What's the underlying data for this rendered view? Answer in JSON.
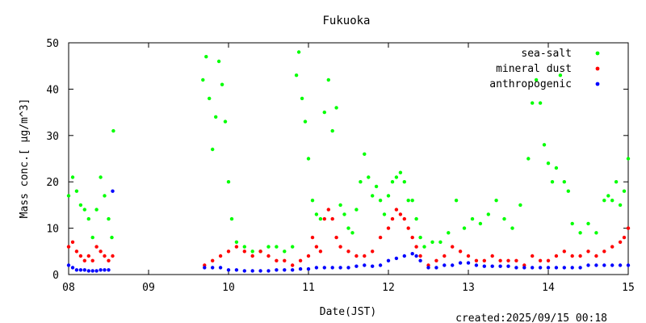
{
  "chart_data": {
    "type": "scatter",
    "title": "Fukuoka",
    "xlabel": "Date(JST)",
    "ylabel": "Mass conc.[ μg/m^3]",
    "x_ticks": [
      "08",
      "09",
      "10",
      "11",
      "12",
      "13",
      "14",
      "15"
    ],
    "y_ticks": [
      "0",
      "10",
      "20",
      "30",
      "40",
      "50"
    ],
    "xlim": [
      8,
      15
    ],
    "ylim": [
      0,
      50
    ],
    "legend_position": "top-right",
    "grid": false,
    "series": [
      {
        "name": "sea-salt",
        "color": "#00ff00",
        "points": [
          [
            8.0,
            17
          ],
          [
            8.05,
            21
          ],
          [
            8.1,
            18
          ],
          [
            8.15,
            15
          ],
          [
            8.2,
            14
          ],
          [
            8.25,
            12
          ],
          [
            8.3,
            8
          ],
          [
            8.35,
            14
          ],
          [
            8.4,
            21
          ],
          [
            8.45,
            17
          ],
          [
            8.5,
            12
          ],
          [
            8.54,
            8
          ],
          [
            8.56,
            31
          ],
          [
            9.68,
            42
          ],
          [
            9.72,
            47
          ],
          [
            9.76,
            38
          ],
          [
            9.8,
            27
          ],
          [
            9.84,
            34
          ],
          [
            9.88,
            46
          ],
          [
            9.92,
            41
          ],
          [
            9.96,
            33
          ],
          [
            10.0,
            20
          ],
          [
            10.04,
            12
          ],
          [
            10.1,
            7
          ],
          [
            10.2,
            6
          ],
          [
            10.3,
            5
          ],
          [
            10.4,
            5
          ],
          [
            10.5,
            6
          ],
          [
            10.6,
            6
          ],
          [
            10.7,
            5
          ],
          [
            10.8,
            6
          ],
          [
            10.85,
            43
          ],
          [
            10.88,
            48
          ],
          [
            10.92,
            38
          ],
          [
            10.96,
            33
          ],
          [
            11.0,
            25
          ],
          [
            11.05,
            16
          ],
          [
            11.1,
            13
          ],
          [
            11.15,
            12
          ],
          [
            11.2,
            35
          ],
          [
            11.25,
            42
          ],
          [
            11.3,
            31
          ],
          [
            11.35,
            36
          ],
          [
            11.4,
            15
          ],
          [
            11.45,
            13
          ],
          [
            11.5,
            10
          ],
          [
            11.55,
            9
          ],
          [
            11.6,
            14
          ],
          [
            11.65,
            20
          ],
          [
            11.7,
            26
          ],
          [
            11.75,
            21
          ],
          [
            11.8,
            17
          ],
          [
            11.85,
            19
          ],
          [
            11.9,
            16
          ],
          [
            11.95,
            13
          ],
          [
            12.0,
            17
          ],
          [
            12.05,
            20
          ],
          [
            12.1,
            21
          ],
          [
            12.15,
            22
          ],
          [
            12.2,
            20
          ],
          [
            12.25,
            16
          ],
          [
            12.3,
            16
          ],
          [
            12.35,
            12
          ],
          [
            12.4,
            8
          ],
          [
            12.45,
            6
          ],
          [
            12.55,
            7
          ],
          [
            12.65,
            7
          ],
          [
            12.75,
            9
          ],
          [
            12.85,
            16
          ],
          [
            12.95,
            10
          ],
          [
            13.05,
            12
          ],
          [
            13.15,
            11
          ],
          [
            13.25,
            13
          ],
          [
            13.35,
            16
          ],
          [
            13.45,
            12
          ],
          [
            13.55,
            10
          ],
          [
            13.65,
            15
          ],
          [
            13.75,
            25
          ],
          [
            13.8,
            37
          ],
          [
            13.85,
            42
          ],
          [
            13.9,
            37
          ],
          [
            13.95,
            28
          ],
          [
            14.0,
            24
          ],
          [
            14.05,
            20
          ],
          [
            14.1,
            23
          ],
          [
            14.15,
            43
          ],
          [
            14.2,
            20
          ],
          [
            14.25,
            18
          ],
          [
            14.3,
            11
          ],
          [
            14.4,
            9
          ],
          [
            14.5,
            11
          ],
          [
            14.6,
            9
          ],
          [
            14.7,
            16
          ],
          [
            14.75,
            17
          ],
          [
            14.8,
            16
          ],
          [
            14.85,
            20
          ],
          [
            14.9,
            15
          ],
          [
            14.95,
            18
          ],
          [
            15.0,
            25
          ]
        ]
      },
      {
        "name": "mineral dust",
        "color": "#ff0000",
        "points": [
          [
            8.0,
            6
          ],
          [
            8.05,
            7
          ],
          [
            8.1,
            5
          ],
          [
            8.15,
            4
          ],
          [
            8.2,
            3
          ],
          [
            8.25,
            4
          ],
          [
            8.3,
            3
          ],
          [
            8.35,
            6
          ],
          [
            8.4,
            5
          ],
          [
            8.45,
            4
          ],
          [
            8.5,
            3
          ],
          [
            8.55,
            4
          ],
          [
            9.7,
            2
          ],
          [
            9.8,
            3
          ],
          [
            9.9,
            4
          ],
          [
            10.0,
            5
          ],
          [
            10.1,
            6
          ],
          [
            10.2,
            5
          ],
          [
            10.3,
            4
          ],
          [
            10.4,
            5
          ],
          [
            10.5,
            4
          ],
          [
            10.6,
            3
          ],
          [
            10.7,
            3
          ],
          [
            10.8,
            2
          ],
          [
            10.9,
            3
          ],
          [
            11.0,
            4
          ],
          [
            11.05,
            8
          ],
          [
            11.1,
            6
          ],
          [
            11.15,
            5
          ],
          [
            11.2,
            12
          ],
          [
            11.25,
            14
          ],
          [
            11.3,
            12
          ],
          [
            11.35,
            8
          ],
          [
            11.4,
            6
          ],
          [
            11.5,
            5
          ],
          [
            11.6,
            4
          ],
          [
            11.7,
            4
          ],
          [
            11.8,
            5
          ],
          [
            11.9,
            8
          ],
          [
            12.0,
            10
          ],
          [
            12.05,
            12
          ],
          [
            12.1,
            14
          ],
          [
            12.15,
            13
          ],
          [
            12.2,
            12
          ],
          [
            12.25,
            10
          ],
          [
            12.3,
            8
          ],
          [
            12.35,
            6
          ],
          [
            12.4,
            4
          ],
          [
            12.5,
            2
          ],
          [
            12.6,
            3
          ],
          [
            12.7,
            4
          ],
          [
            12.8,
            6
          ],
          [
            12.9,
            5
          ],
          [
            13.0,
            4
          ],
          [
            13.1,
            3
          ],
          [
            13.2,
            3
          ],
          [
            13.3,
            4
          ],
          [
            13.4,
            3
          ],
          [
            13.5,
            3
          ],
          [
            13.6,
            3
          ],
          [
            13.7,
            2
          ],
          [
            13.8,
            4
          ],
          [
            13.9,
            3
          ],
          [
            14.0,
            3
          ],
          [
            14.1,
            4
          ],
          [
            14.2,
            5
          ],
          [
            14.3,
            4
          ],
          [
            14.4,
            4
          ],
          [
            14.5,
            5
          ],
          [
            14.6,
            4
          ],
          [
            14.7,
            5
          ],
          [
            14.8,
            6
          ],
          [
            14.9,
            7
          ],
          [
            14.95,
            8
          ],
          [
            15.0,
            10
          ]
        ]
      },
      {
        "name": "anthropogenic",
        "color": "#0000ff",
        "points": [
          [
            8.0,
            2
          ],
          [
            8.05,
            1.5
          ],
          [
            8.1,
            1
          ],
          [
            8.15,
            1
          ],
          [
            8.2,
            1
          ],
          [
            8.25,
            0.8
          ],
          [
            8.3,
            0.8
          ],
          [
            8.35,
            0.8
          ],
          [
            8.4,
            1
          ],
          [
            8.45,
            1
          ],
          [
            8.5,
            1
          ],
          [
            8.55,
            18
          ],
          [
            9.7,
            1.5
          ],
          [
            9.8,
            1.5
          ],
          [
            9.9,
            1.5
          ],
          [
            10.0,
            1
          ],
          [
            10.1,
            1
          ],
          [
            10.2,
            0.8
          ],
          [
            10.3,
            0.8
          ],
          [
            10.4,
            0.8
          ],
          [
            10.5,
            0.8
          ],
          [
            10.6,
            1
          ],
          [
            10.7,
            1
          ],
          [
            10.8,
            1
          ],
          [
            10.9,
            1.2
          ],
          [
            11.0,
            1.2
          ],
          [
            11.1,
            1.5
          ],
          [
            11.2,
            1.5
          ],
          [
            11.3,
            1.5
          ],
          [
            11.4,
            1.5
          ],
          [
            11.5,
            1.5
          ],
          [
            11.6,
            1.8
          ],
          [
            11.7,
            2
          ],
          [
            11.8,
            1.8
          ],
          [
            11.9,
            2
          ],
          [
            12.0,
            3
          ],
          [
            12.1,
            3.5
          ],
          [
            12.2,
            4
          ],
          [
            12.3,
            4.5
          ],
          [
            12.35,
            4
          ],
          [
            12.4,
            3
          ],
          [
            12.5,
            1.5
          ],
          [
            12.6,
            1.5
          ],
          [
            12.7,
            2
          ],
          [
            12.8,
            2
          ],
          [
            12.9,
            2.5
          ],
          [
            13.0,
            2.5
          ],
          [
            13.1,
            2
          ],
          [
            13.2,
            1.8
          ],
          [
            13.3,
            1.8
          ],
          [
            13.4,
            1.8
          ],
          [
            13.5,
            1.8
          ],
          [
            13.6,
            1.5
          ],
          [
            13.7,
            1.5
          ],
          [
            13.8,
            1.5
          ],
          [
            13.9,
            1.5
          ],
          [
            14.0,
            1.5
          ],
          [
            14.1,
            1.5
          ],
          [
            14.2,
            1.5
          ],
          [
            14.3,
            1.5
          ],
          [
            14.4,
            1.5
          ],
          [
            14.5,
            2
          ],
          [
            14.6,
            2
          ],
          [
            14.7,
            2
          ],
          [
            14.8,
            2
          ],
          [
            14.9,
            2
          ],
          [
            15.0,
            2
          ]
        ]
      }
    ]
  },
  "footer": {
    "created": "created:2025/09/15 00:18"
  }
}
